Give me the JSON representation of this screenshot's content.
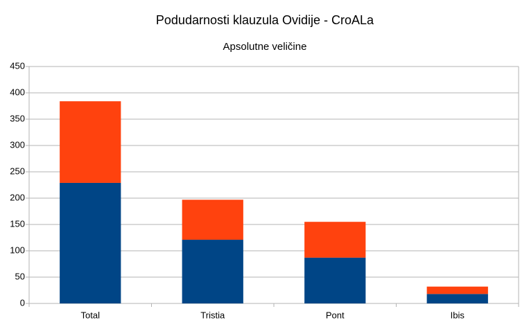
{
  "chart_data": {
    "type": "stacked-bar",
    "title": "Podudarnosti klauzula Ovidije - CroALa",
    "subtitle": "Apsolutne veličine",
    "categories": [
      "Total",
      "Tristia",
      "Pont",
      "Ibis"
    ],
    "series": [
      {
        "color": "#004586",
        "values": [
          229,
          121,
          87,
          18
        ]
      },
      {
        "color": "#ff420e",
        "values": [
          155,
          76,
          68,
          14
        ]
      }
    ],
    "ylim": [
      0,
      450
    ],
    "yticks": [
      0,
      50,
      100,
      150,
      200,
      250,
      300,
      350,
      400,
      450
    ],
    "grid": true
  }
}
